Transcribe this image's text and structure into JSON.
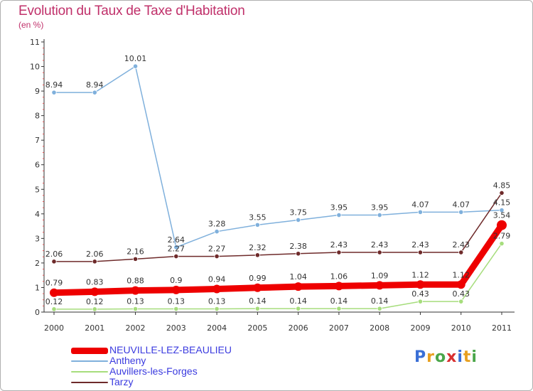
{
  "header": {
    "title": "Evolution du Taux de Taxe d'Habitation",
    "subtitle": "(en %)"
  },
  "logo": {
    "text": "Proxiti",
    "letter_colors": [
      "#3a6fd6",
      "#e8a020",
      "#4aa64a",
      "#d83030",
      "#3a6fd6",
      "#e8a020",
      "#4aa64a"
    ]
  },
  "chart_data": {
    "type": "line",
    "x": [
      "2000",
      "2001",
      "2002",
      "2003",
      "2004",
      "2005",
      "2006",
      "2007",
      "2008",
      "2009",
      "2010",
      "2011"
    ],
    "y_ticks": [
      "0",
      "1",
      "2",
      "3",
      "4",
      "5",
      "6",
      "7",
      "8",
      "9",
      "10",
      "11"
    ],
    "ylim": [
      0,
      11
    ],
    "grid": false,
    "legend_position": "bottom-left",
    "series": [
      {
        "name": "NEUVILLE-LEZ-BEAULIEU",
        "color": "#ee0000",
        "highlight": true,
        "values": [
          0.79,
          0.83,
          0.88,
          0.9,
          0.94,
          0.99,
          1.04,
          1.06,
          1.09,
          1.12,
          1.12,
          3.54
        ],
        "labels": [
          "0.79",
          "0.83",
          "0.88",
          "0.9",
          "0.94",
          "0.99",
          "1.04",
          "1.06",
          "1.09",
          "1.12",
          "1.12",
          "3.54"
        ]
      },
      {
        "name": "Antheny",
        "color": "#7fb0dc",
        "highlight": false,
        "values": [
          8.94,
          8.94,
          10.01,
          2.64,
          3.28,
          3.55,
          3.75,
          3.95,
          3.95,
          4.07,
          4.07,
          4.15
        ],
        "labels": [
          "8.94",
          "8.94",
          "10.01",
          "2.64",
          "3.28",
          "3.55",
          "3.75",
          "3.95",
          "3.95",
          "4.07",
          "4.07",
          "4.15"
        ]
      },
      {
        "name": "Auvillers-les-Forges",
        "color": "#a6dd7c",
        "highlight": false,
        "values": [
          0.12,
          0.12,
          0.13,
          0.13,
          0.13,
          0.14,
          0.14,
          0.14,
          0.14,
          0.43,
          0.43,
          2.79
        ],
        "labels": [
          "0.12",
          "0.12",
          "0.13",
          "0.13",
          "0.13",
          "0.14",
          "0.14",
          "0.14",
          "0.14",
          "0.43",
          "0.43",
          "2.79"
        ]
      },
      {
        "name": "Tarzy",
        "color": "#6e2a2a",
        "highlight": false,
        "values": [
          2.06,
          2.06,
          2.16,
          2.27,
          2.27,
          2.32,
          2.38,
          2.43,
          2.43,
          2.43,
          2.43,
          4.85
        ],
        "labels": [
          "2.06",
          "2.06",
          "2.16",
          "2.27",
          "2.27",
          "2.32",
          "2.38",
          "2.43",
          "2.43",
          "2.43",
          "2.43",
          "4.85"
        ]
      }
    ]
  }
}
